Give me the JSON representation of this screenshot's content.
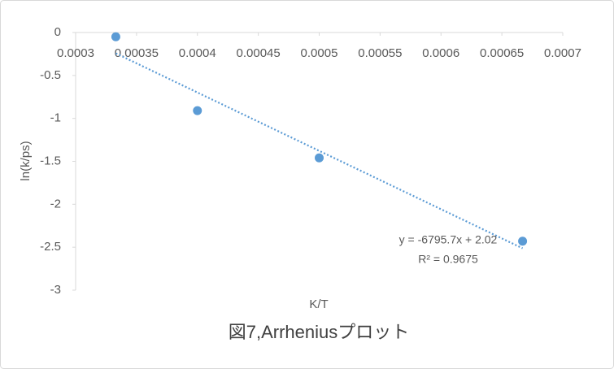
{
  "chart_data": {
    "type": "scatter",
    "title": "図7,Arrheniusプロット",
    "x_label": "K/T",
    "y_label": "ln(k/ps)",
    "series": [
      {
        "color": "#5b9bd5",
        "x": [
          0.000333,
          0.0004,
          0.0005,
          0.000667
        ],
        "values": [
          -0.05,
          -0.91,
          -1.46,
          -2.43
        ]
      }
    ],
    "xlim": [
      0.0003,
      0.0007
    ],
    "xticks": [
      0.0003,
      0.00035,
      0.0004,
      0.00045,
      0.0005,
      0.00055,
      0.0006,
      0.00065,
      0.0007
    ],
    "ylim": [
      -3,
      0
    ],
    "yticks": [
      0,
      -0.5,
      -1,
      -1.5,
      -2,
      -2.5,
      -3
    ],
    "grid": false,
    "trendline": {
      "type": "linear",
      "slope": -6795.7,
      "intercept": 2.02,
      "equation": "y = -6795.7x + 2.02",
      "r_squared": "R² = 0.9675"
    }
  }
}
